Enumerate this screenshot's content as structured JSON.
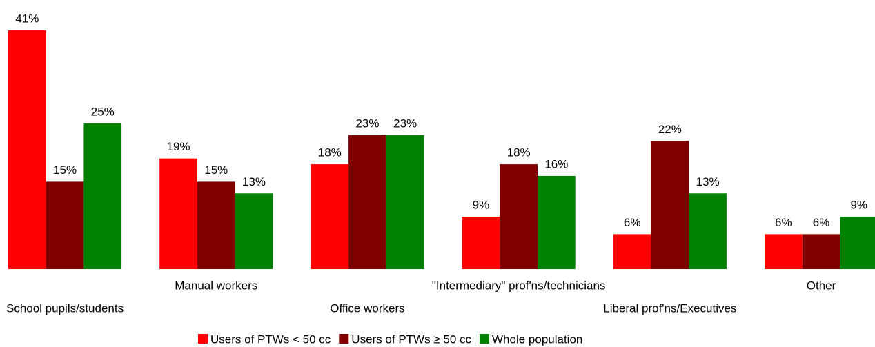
{
  "chart_data": {
    "type": "bar",
    "categories": [
      "School pupils/students",
      "Manual workers",
      "Office workers",
      "\"Intermediary\" prof'ns/technicians",
      "Liberal prof'ns/Executives",
      "Other"
    ],
    "series": [
      {
        "name": "Users of PTWs < 50 cc",
        "color": "#ff0000",
        "values": [
          41,
          19,
          18,
          9,
          6,
          6
        ],
        "value_labels": [
          "41%",
          "19%",
          "18%",
          "9%",
          "6%",
          "6%"
        ]
      },
      {
        "name": "Users of PTWs ≥ 50 cc",
        "color": "#800000",
        "values": [
          15,
          15,
          23,
          18,
          22,
          6
        ],
        "value_labels": [
          "15%",
          "15%",
          "23%",
          "18%",
          "22%",
          "6%"
        ]
      },
      {
        "name": "Whole population",
        "color": "#008000",
        "values": [
          25,
          13,
          23,
          16,
          13,
          9
        ],
        "value_labels": [
          "25%",
          "13%",
          "23%",
          "16%",
          "13%",
          "9%"
        ]
      }
    ],
    "legend": "bottom"
  }
}
